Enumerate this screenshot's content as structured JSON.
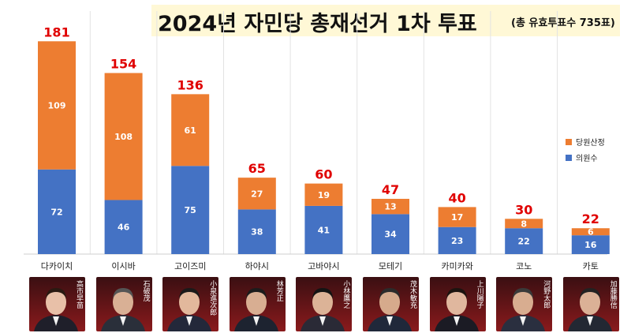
{
  "title": "2024년 자민당 총재선거 1차 투표",
  "subtitle": "(총 유효투표수 735표)",
  "colors": {
    "lawmakers": "#4472c4",
    "party": "#ed7d31",
    "total_label": "#e00000"
  },
  "chart_data": {
    "type": "bar",
    "stacked": true,
    "categories": [
      "다카이치",
      "이시바",
      "고이즈미",
      "하야시",
      "고바야시",
      "모테기",
      "카미카와",
      "코노",
      "카토"
    ],
    "series": [
      {
        "name": "의원수",
        "values": [
          72,
          46,
          75,
          38,
          41,
          34,
          23,
          22,
          16
        ]
      },
      {
        "name": "당원산정",
        "values": [
          109,
          108,
          61,
          27,
          19,
          13,
          17,
          8,
          6
        ]
      }
    ],
    "totals": [
      181,
      154,
      136,
      65,
      60,
      47,
      40,
      30,
      22
    ],
    "ylim": [
      0,
      200
    ],
    "grid": false,
    "legend": "right",
    "title": "2024년 자민당 총재선거 1차 투표",
    "xlabel": "",
    "ylabel": ""
  },
  "candidates": [
    {
      "name_jp": "高市早苗"
    },
    {
      "name_jp": "石破茂"
    },
    {
      "name_jp": "小泉進次郎"
    },
    {
      "name_jp": "林芳正"
    },
    {
      "name_jp": "小林鷹之"
    },
    {
      "name_jp": "茂木敏充"
    },
    {
      "name_jp": "上川陽子"
    },
    {
      "name_jp": "河野太郎"
    },
    {
      "name_jp": "加藤勝信"
    }
  ]
}
